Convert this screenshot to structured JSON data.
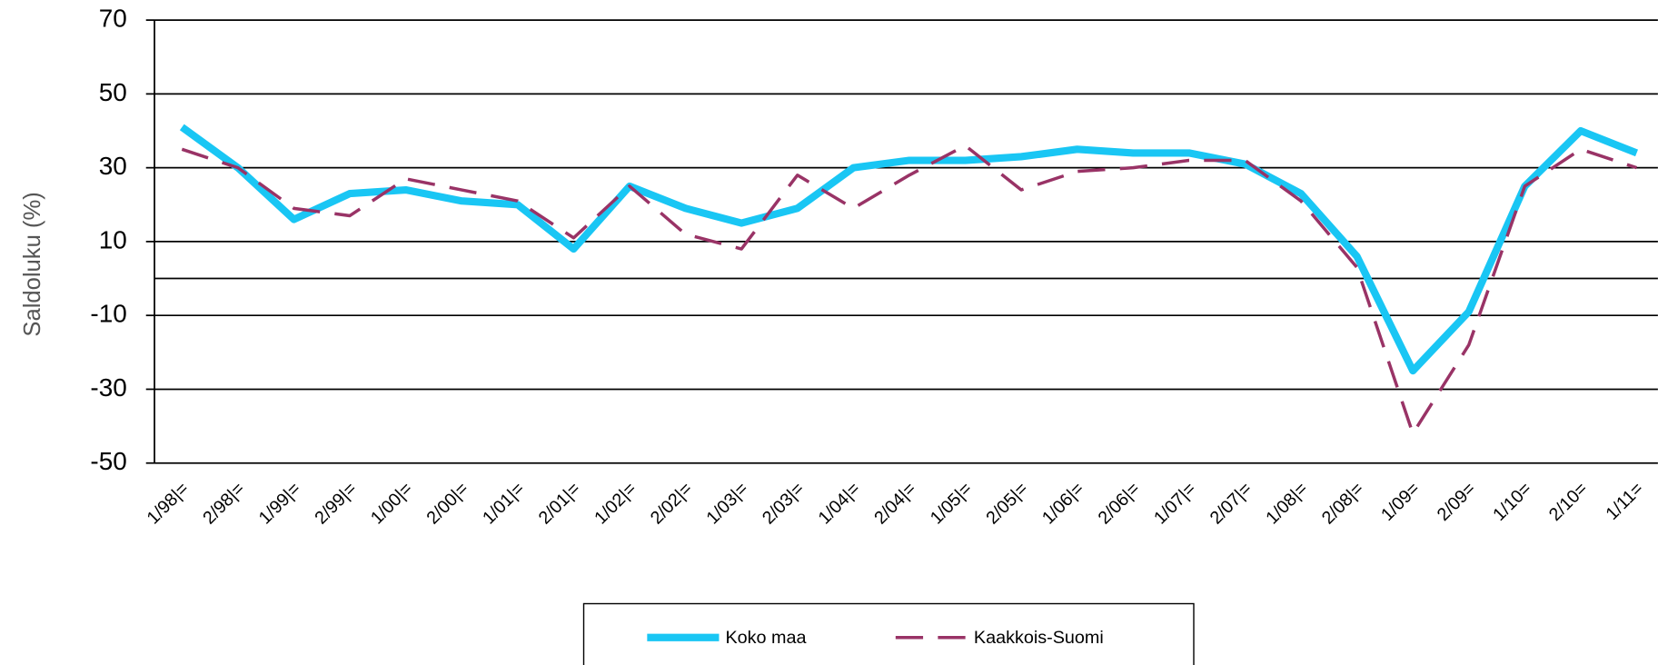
{
  "chart_data": {
    "type": "line",
    "ylabel": "Saldoluku (%)",
    "categories": [
      "1/98|=",
      "2/98|=",
      "1/99|=",
      "2/99|=",
      "1/00|=",
      "2/00|=",
      "1/01|=",
      "2/01|=",
      "1/02|=",
      "2/02|=",
      "1/03|=",
      "2/03|=",
      "1/04|=",
      "2/04|=",
      "1/05|=",
      "2/05|=",
      "1/06|=",
      "2/06|=",
      "1/07|=",
      "2/07|=",
      "1/08|=",
      "2/08|=",
      "1/09=",
      "2/09=",
      "1/10=",
      "2/10=",
      "1/11="
    ],
    "series": [
      {
        "name": "Koko maa",
        "color": "#19c6f4",
        "values": [
          41,
          30,
          16,
          23,
          24,
          21,
          20,
          8,
          25,
          19,
          15,
          19,
          30,
          32,
          32,
          33,
          35,
          34,
          34,
          31,
          23,
          6,
          -25,
          -9,
          25,
          40,
          34
        ]
      },
      {
        "name": "Kaakkois-Suomi",
        "color": "#993366",
        "values": [
          35,
          30,
          19,
          17,
          27,
          24,
          21,
          11,
          25,
          12,
          8,
          28,
          19,
          28,
          36,
          24,
          29,
          30,
          32,
          32,
          21,
          3,
          -42,
          -18,
          25,
          35,
          30
        ]
      }
    ],
    "ylim": [
      -50,
      70
    ],
    "yticks": [
      -50,
      -30,
      -10,
      10,
      30,
      50,
      70
    ],
    "grid": true
  }
}
